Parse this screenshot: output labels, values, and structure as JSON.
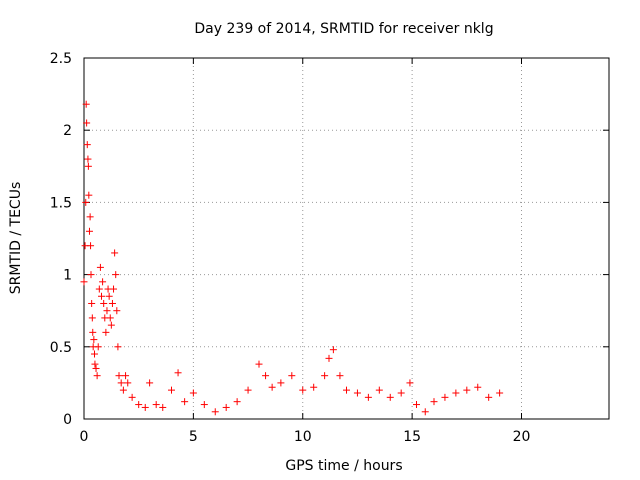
{
  "chart_data": {
    "type": "scatter",
    "title": "Day 239 of 2014, SRMTID for receiver nklg",
    "xlabel": "GPS time / hours",
    "ylabel": "SRMTID / TECUs",
    "xlim": [
      0,
      24
    ],
    "ylim": [
      0,
      2.5
    ],
    "xticks": [
      0,
      5,
      10,
      15,
      20
    ],
    "yticks": [
      0,
      0.5,
      1,
      1.5,
      2,
      2.5
    ],
    "xtick_labels": [
      "0",
      "5",
      "10",
      "15",
      "20"
    ],
    "ytick_labels": [
      "0",
      "0.5",
      "1",
      "1.5",
      "2",
      "2.5"
    ],
    "grid": true,
    "marker": "+",
    "series": [
      {
        "name": "SRMTID",
        "color": "#ff0000",
        "points": [
          [
            0.0,
            0.95
          ],
          [
            0.05,
            1.2
          ],
          [
            0.08,
            1.5
          ],
          [
            0.1,
            2.18
          ],
          [
            0.12,
            2.05
          ],
          [
            0.15,
            1.9
          ],
          [
            0.18,
            1.8
          ],
          [
            0.2,
            1.75
          ],
          [
            0.22,
            1.55
          ],
          [
            0.25,
            1.3
          ],
          [
            0.28,
            1.4
          ],
          [
            0.3,
            1.2
          ],
          [
            0.32,
            1.0
          ],
          [
            0.35,
            0.8
          ],
          [
            0.38,
            0.7
          ],
          [
            0.4,
            0.6
          ],
          [
            0.42,
            0.5
          ],
          [
            0.45,
            0.55
          ],
          [
            0.48,
            0.45
          ],
          [
            0.5,
            0.38
          ],
          [
            0.55,
            0.35
          ],
          [
            0.6,
            0.3
          ],
          [
            0.65,
            0.5
          ],
          [
            0.7,
            0.9
          ],
          [
            0.75,
            1.05
          ],
          [
            0.8,
            0.85
          ],
          [
            0.85,
            0.95
          ],
          [
            0.9,
            0.8
          ],
          [
            0.95,
            0.7
          ],
          [
            1.0,
            0.6
          ],
          [
            1.05,
            0.75
          ],
          [
            1.1,
            0.9
          ],
          [
            1.15,
            0.85
          ],
          [
            1.2,
            0.7
          ],
          [
            1.25,
            0.65
          ],
          [
            1.3,
            0.8
          ],
          [
            1.35,
            0.9
          ],
          [
            1.4,
            1.15
          ],
          [
            1.45,
            1.0
          ],
          [
            1.5,
            0.75
          ],
          [
            1.55,
            0.5
          ],
          [
            1.6,
            0.3
          ],
          [
            1.7,
            0.25
          ],
          [
            1.8,
            0.2
          ],
          [
            1.9,
            0.3
          ],
          [
            2.0,
            0.25
          ],
          [
            2.2,
            0.15
          ],
          [
            2.5,
            0.1
          ],
          [
            2.8,
            0.08
          ],
          [
            3.0,
            0.25
          ],
          [
            3.3,
            0.1
          ],
          [
            3.6,
            0.08
          ],
          [
            4.0,
            0.2
          ],
          [
            4.3,
            0.32
          ],
          [
            4.6,
            0.12
          ],
          [
            5.0,
            0.18
          ],
          [
            5.5,
            0.1
          ],
          [
            6.0,
            0.05
          ],
          [
            6.5,
            0.08
          ],
          [
            7.0,
            0.12
          ],
          [
            7.5,
            0.2
          ],
          [
            8.0,
            0.38
          ],
          [
            8.3,
            0.3
          ],
          [
            8.6,
            0.22
          ],
          [
            9.0,
            0.25
          ],
          [
            9.5,
            0.3
          ],
          [
            10.0,
            0.2
          ],
          [
            10.5,
            0.22
          ],
          [
            11.0,
            0.3
          ],
          [
            11.2,
            0.42
          ],
          [
            11.4,
            0.48
          ],
          [
            11.7,
            0.3
          ],
          [
            12.0,
            0.2
          ],
          [
            12.5,
            0.18
          ],
          [
            13.0,
            0.15
          ],
          [
            13.5,
            0.2
          ],
          [
            14.0,
            0.15
          ],
          [
            14.5,
            0.18
          ],
          [
            14.9,
            0.25
          ],
          [
            15.2,
            0.1
          ],
          [
            15.6,
            0.05
          ],
          [
            16.0,
            0.12
          ],
          [
            16.5,
            0.15
          ],
          [
            17.0,
            0.18
          ],
          [
            17.5,
            0.2
          ],
          [
            18.0,
            0.22
          ],
          [
            18.5,
            0.15
          ],
          [
            19.0,
            0.18
          ]
        ]
      }
    ]
  }
}
